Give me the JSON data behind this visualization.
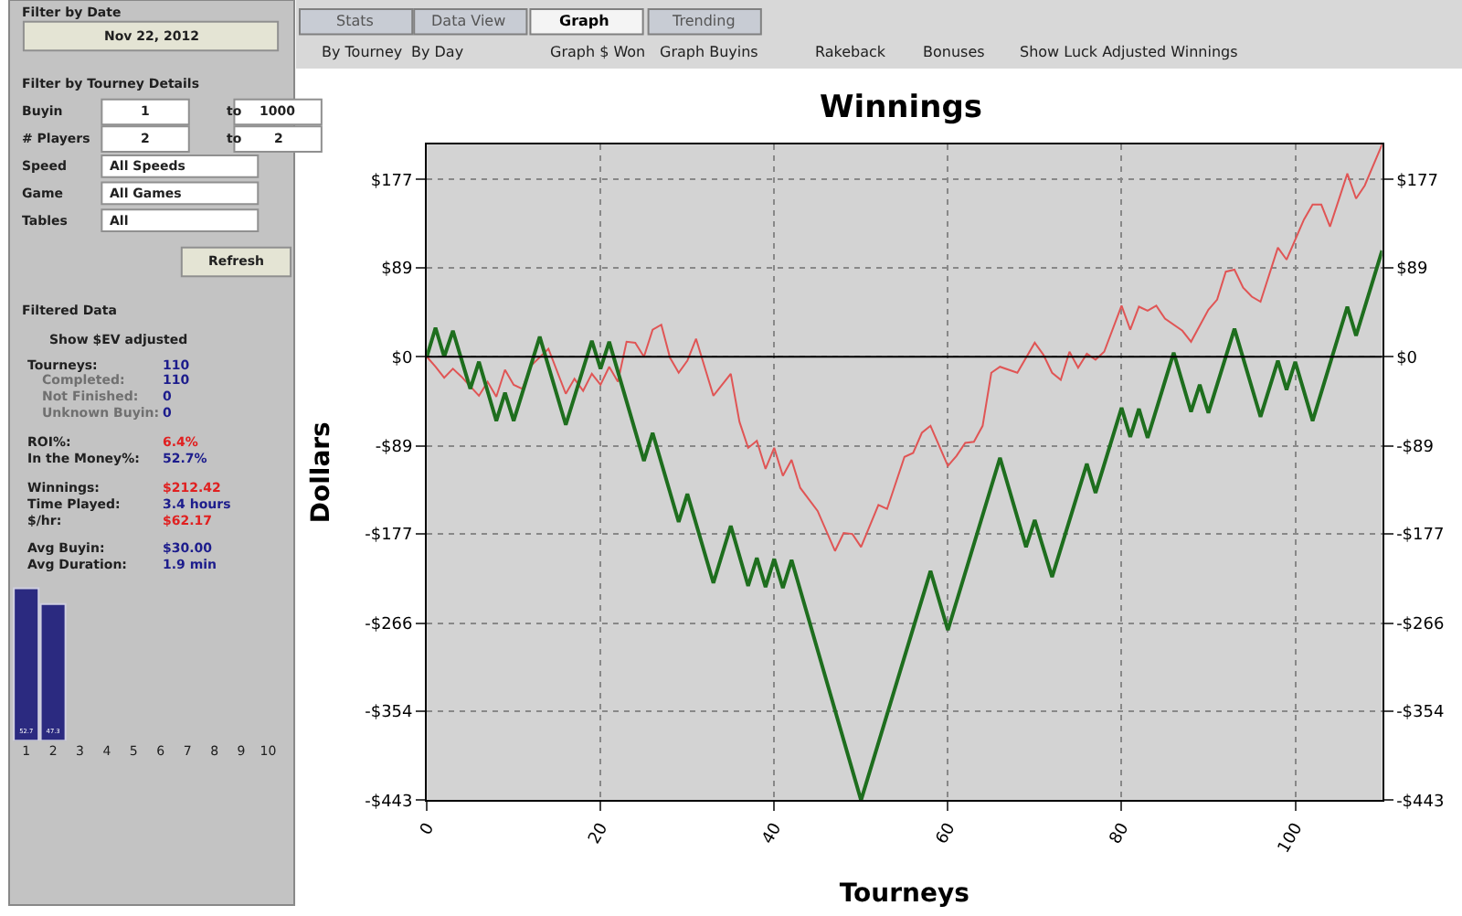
{
  "chart_data": [
    {
      "type": "other",
      "annotations": [
        "Filter by Date",
        "Nov 22, 2012",
        "Filter by Tourney Details",
        "Buyin",
        "1",
        "to",
        "1000",
        "# Players",
        "2",
        "to",
        "2",
        "Speed",
        "All Speeds",
        "Game",
        "All Games",
        "Tables",
        "All",
        "Refresh",
        "Filtered Data",
        "Show $EV adjusted",
        "Tourneys:",
        "110",
        "Completed:",
        "110",
        "Not Finished:",
        "0",
        "Unknown Buyin:",
        "0",
        "ROI%:",
        "6.4%",
        "In the Money%:",
        "52.7%",
        "Winnings:",
        "$212.42",
        "Time Played:",
        "3.4 hours",
        "$/hr:",
        "$62.17",
        "Avg Buyin:",
        "$30.00",
        "Avg Duration:",
        "1.9 min"
      ]
    },
    {
      "type": "bar",
      "categories": [
        "1",
        "2",
        "3",
        "4",
        "5",
        "6",
        "7",
        "8",
        "9",
        "10"
      ],
      "values": [
        52.7,
        47.3,
        null,
        null,
        null,
        null,
        null,
        null,
        null,
        null
      ],
      "color": "#2b2a80",
      "data_labels": true
    },
    {
      "type": "other",
      "annotations": [
        "Stats",
        "Data View",
        "Graph",
        "Trending",
        "By Tourney",
        "By Day",
        "Graph $ Won",
        "Graph Buyins",
        "Rakeback",
        "Bonuses",
        "Show Luck Adjusted Winnings"
      ]
    },
    {
      "type": "line",
      "title": "Winnings",
      "xlabel": "Tourneys",
      "ylabel": "Dollars",
      "xlim": [
        0,
        110
      ],
      "ylim": [
        -443,
        212
      ],
      "xticks": [
        0,
        20,
        40,
        60,
        80,
        100
      ],
      "yticks": [
        {
          "value": -443,
          "label": "-$443"
        },
        {
          "value": -354,
          "label": "-$354"
        },
        {
          "value": -266,
          "label": "-$266"
        },
        {
          "value": -177,
          "label": "-$177"
        },
        {
          "value": -89,
          "label": "-$89"
        },
        {
          "value": 0,
          "label": "$0"
        },
        {
          "value": 89,
          "label": "$89"
        },
        {
          "value": 177,
          "label": "$177"
        }
      ],
      "y2lim": [
        -443,
        212
      ],
      "y2ticks": [
        {
          "value": -443,
          "label": "-$443"
        },
        {
          "value": -354,
          "label": "-$354"
        },
        {
          "value": -266,
          "label": "-$266"
        },
        {
          "value": -177,
          "label": "-$177"
        },
        {
          "value": -89,
          "label": "-$89"
        },
        {
          "value": 0,
          "label": "$0"
        },
        {
          "value": 89,
          "label": "$89"
        },
        {
          "value": 177,
          "label": "$177"
        }
      ],
      "grid": true,
      "ref_lines": [
        {
          "axis": "y",
          "value": 0,
          "color": "#000000"
        }
      ],
      "series": [
        {
          "color": "#e05555",
          "x": [
            0,
            1,
            2,
            3,
            4,
            6,
            7,
            8,
            9,
            10,
            11,
            12,
            14,
            16,
            17,
            18,
            19,
            20,
            21,
            22,
            23,
            24,
            25,
            26,
            27,
            28,
            29,
            30,
            31,
            33,
            35,
            36,
            37,
            38,
            39,
            40,
            41,
            42,
            43,
            45,
            47,
            48,
            49,
            50,
            52,
            53,
            55,
            56,
            57,
            58,
            60,
            61,
            62,
            63,
            64,
            65,
            66,
            68,
            70,
            71,
            72,
            73,
            74,
            75,
            76,
            77,
            78,
            80,
            81,
            82,
            83,
            84,
            85,
            87,
            88,
            90,
            91,
            92,
            93,
            94,
            95,
            96,
            98,
            99,
            101,
            102,
            103,
            104,
            106,
            107,
            108,
            110
          ],
          "values": [
            0,
            -10,
            -21,
            -12,
            -20,
            -39,
            -25,
            -40,
            -13,
            -28,
            -32,
            -9,
            8,
            -37,
            -22,
            -34,
            -17,
            -28,
            -10,
            -25,
            15,
            14,
            0,
            27,
            32,
            -1,
            -16,
            -4,
            18,
            -39,
            -17,
            -65,
            -91,
            -84,
            -112,
            -91,
            -119,
            -103,
            -131,
            -154,
            -194,
            -176,
            -177,
            -190,
            -148,
            -152,
            -100,
            -96,
            -76,
            -69,
            -109,
            -99,
            -86,
            -85,
            -69,
            -16,
            -10,
            -16,
            14,
            2,
            -16,
            -23,
            5,
            -11,
            3,
            -3,
            5,
            51,
            27,
            50,
            46,
            51,
            38,
            26,
            15,
            47,
            57,
            85,
            87,
            69,
            60,
            55,
            109,
            97,
            137,
            152,
            152,
            130,
            183,
            158,
            171,
            212
          ]
        },
        {
          "color": "#1e6e1e",
          "x": [
            0,
            1,
            2,
            3,
            5,
            6,
            8,
            9,
            10,
            13,
            16,
            19,
            20,
            21,
            25,
            26,
            29,
            30,
            33,
            35,
            37,
            38,
            39,
            40,
            41,
            42,
            50,
            58,
            60,
            66,
            69,
            70,
            72,
            76,
            77,
            80,
            81,
            82,
            83,
            86,
            88,
            89,
            90,
            93,
            96,
            98,
            99,
            100,
            102,
            106,
            107,
            110
          ],
          "values": [
            0,
            29,
            0,
            26,
            -32,
            -5,
            -64,
            -36,
            -64,
            20,
            -68,
            16,
            -12,
            15,
            -104,
            -76,
            -165,
            -137,
            -226,
            -169,
            -229,
            -201,
            -230,
            -202,
            -231,
            -203,
            -443,
            -214,
            -273,
            -101,
            -190,
            -163,
            -220,
            -107,
            -136,
            -51,
            -80,
            -52,
            -81,
            4,
            -55,
            -28,
            -56,
            28,
            -60,
            -4,
            -33,
            -5,
            -64,
            50,
            21,
            106
          ]
        }
      ]
    }
  ]
}
